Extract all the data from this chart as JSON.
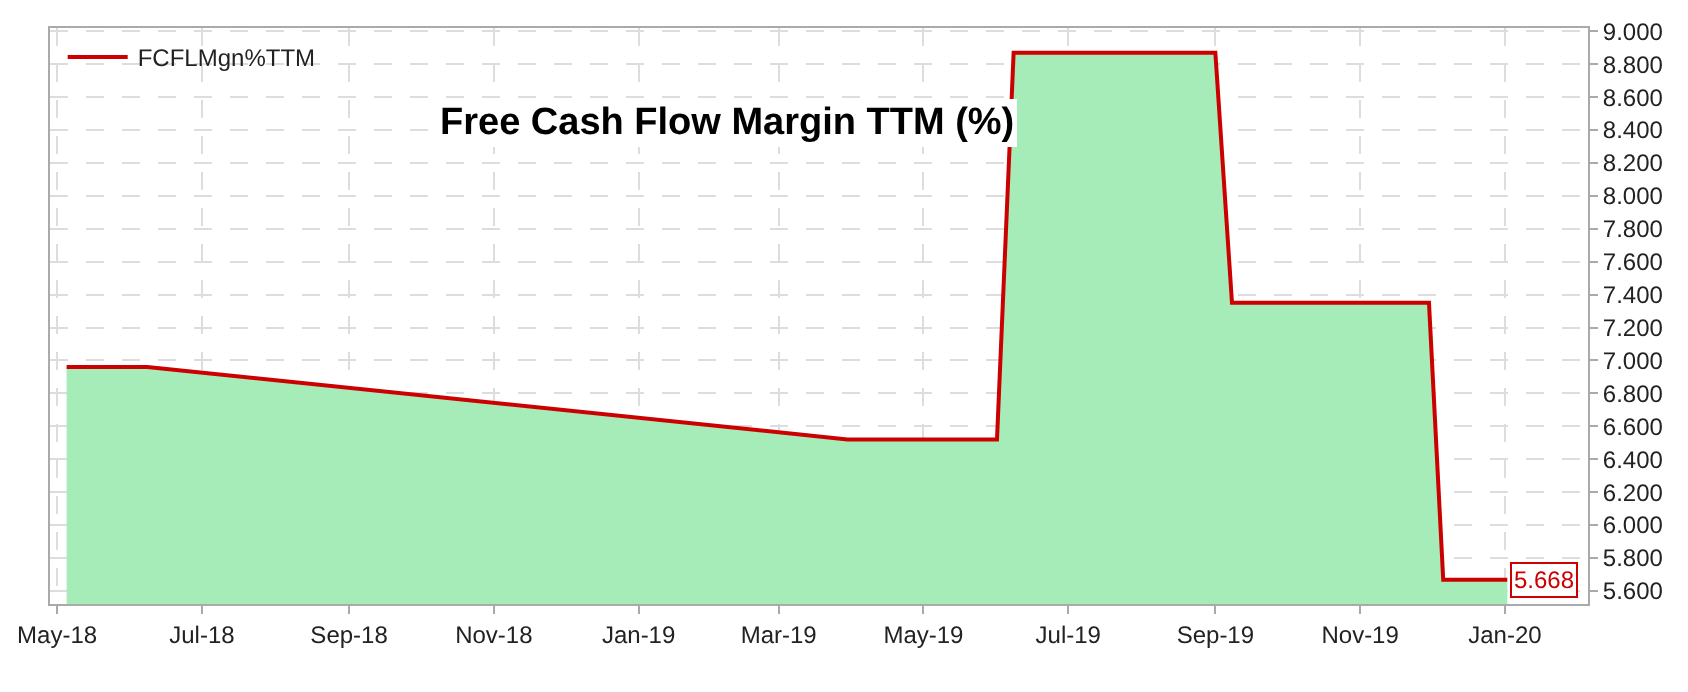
{
  "chart_data": {
    "type": "area",
    "title": "Free Cash Flow Margin TTM (%)",
    "x": [
      "2018-05-05",
      "2018-06-08",
      "2019-03-30",
      "2019-06-01",
      "2019-06-08",
      "2019-09-01",
      "2019-09-08",
      "2019-11-30",
      "2019-12-06",
      "2020-01-02"
    ],
    "series": [
      {
        "color": "#a5ecb8",
        "values": [
          6.96,
          6.96,
          6.52,
          6.52,
          8.87,
          8.87,
          7.35,
          7.35,
          5.668,
          5.668
        ]
      },
      {
        "type": "line",
        "name": "FCFLMgn%TTM",
        "color": "#cc0000",
        "values": [
          6.96,
          6.96,
          6.52,
          6.52,
          8.87,
          8.87,
          7.35,
          7.35,
          5.668,
          5.668
        ]
      }
    ],
    "annotations": [
      {
        "text": "5.668",
        "x": "2020-01-02",
        "y": 5.668
      }
    ],
    "xlim": [
      "2018-04-28",
      "2020-02-05"
    ],
    "xticks": [
      {
        "value": "2018-05-01",
        "label": "May-18"
      },
      {
        "value": "2018-07-01",
        "label": "Jul-18"
      },
      {
        "value": "2018-09-01",
        "label": "Sep-18"
      },
      {
        "value": "2018-11-01",
        "label": "Nov-18"
      },
      {
        "value": "2019-01-01",
        "label": "Jan-19"
      },
      {
        "value": "2019-03-01",
        "label": "Mar-19"
      },
      {
        "value": "2019-05-01",
        "label": "May-19"
      },
      {
        "value": "2019-07-01",
        "label": "Jul-19"
      },
      {
        "value": "2019-09-01",
        "label": "Sep-19"
      },
      {
        "value": "2019-11-01",
        "label": "Nov-19"
      },
      {
        "value": "2020-01-01",
        "label": "Jan-20"
      }
    ],
    "ylim": [
      5.52,
      9.02
    ],
    "yticks": [
      {
        "value": 5.6,
        "label": "5.600"
      },
      {
        "value": 5.8,
        "label": "5.800"
      },
      {
        "value": 6.0,
        "label": "6.000"
      },
      {
        "value": 6.2,
        "label": "6.200"
      },
      {
        "value": 6.4,
        "label": "6.400"
      },
      {
        "value": 6.6,
        "label": "6.600"
      },
      {
        "value": 6.8,
        "label": "6.800"
      },
      {
        "value": 7.0,
        "label": "7.000"
      },
      {
        "value": 7.2,
        "label": "7.200"
      },
      {
        "value": 7.4,
        "label": "7.400"
      },
      {
        "value": 7.6,
        "label": "7.600"
      },
      {
        "value": 7.8,
        "label": "7.800"
      },
      {
        "value": 8.0,
        "label": "8.000"
      },
      {
        "value": 8.2,
        "label": "8.200"
      },
      {
        "value": 8.4,
        "label": "8.400"
      },
      {
        "value": 8.6,
        "label": "8.600"
      },
      {
        "value": 8.8,
        "label": "8.800"
      },
      {
        "value": 9.0,
        "label": "9.000"
      }
    ],
    "grid": true,
    "legend": "top left",
    "line_style": "solid"
  }
}
